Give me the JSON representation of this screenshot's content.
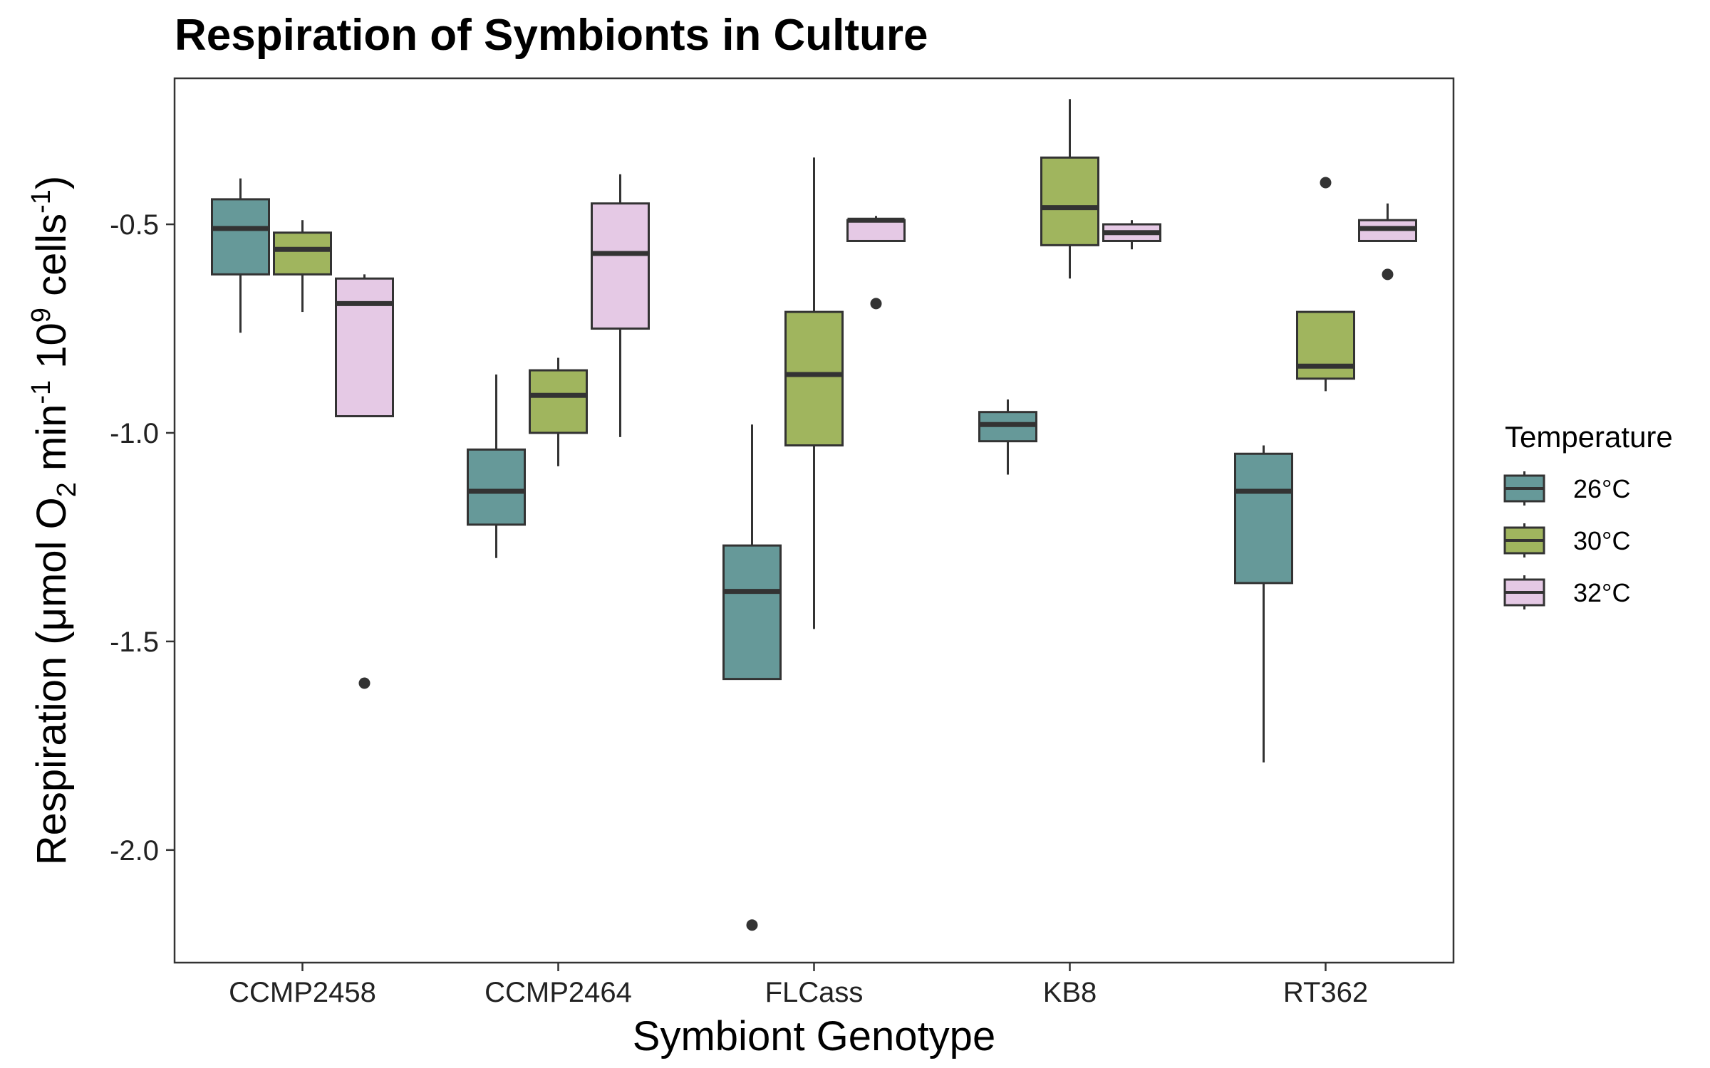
{
  "chart_data": {
    "type": "boxplot",
    "title": "Respiration of Symbionts in Culture",
    "xlabel": "Symbiont Genotype",
    "ylabel": {
      "parts": [
        "Respiration (μmol O",
        "2",
        " min",
        "-1",
        " 10",
        "9",
        " cells",
        "-1",
        ")"
      ]
    },
    "ylim": [
      -2.27,
      -0.15
    ],
    "yticks": [
      -0.5,
      -1.0,
      -1.5,
      -2.0
    ],
    "ytick_labels": [
      "-0.5",
      "-1.0",
      "-1.5",
      "-2.0"
    ],
    "grid": false,
    "legend": {
      "title": "Temperature",
      "position": "right",
      "entries": [
        "26°C",
        "30°C",
        "32°C"
      ]
    },
    "colors": {
      "26°C": "#669999",
      "30°C": "#a0b55e",
      "32°C": "#e5c9e5"
    },
    "categories": [
      "CCMP2458",
      "CCMP2464",
      "FLCass",
      "KB8",
      "RT362"
    ],
    "series": [
      {
        "name": "26°C",
        "boxes": [
          {
            "lower": -0.76,
            "q1": -0.62,
            "median": -0.51,
            "q3": -0.44,
            "upper": -0.39,
            "outliers": []
          },
          {
            "lower": -1.3,
            "q1": -1.22,
            "median": -1.14,
            "q3": -1.04,
            "upper": -0.86,
            "outliers": []
          },
          {
            "lower": -1.59,
            "q1": -1.59,
            "median": -1.38,
            "q3": -1.27,
            "upper": -0.98,
            "outliers": [
              -2.18
            ]
          },
          {
            "lower": -1.1,
            "q1": -1.02,
            "median": -0.98,
            "q3": -0.95,
            "upper": -0.92,
            "outliers": []
          },
          {
            "lower": -1.79,
            "q1": -1.36,
            "median": -1.14,
            "q3": -1.05,
            "upper": -1.03,
            "outliers": []
          }
        ]
      },
      {
        "name": "30°C",
        "boxes": [
          {
            "lower": -0.71,
            "q1": -0.62,
            "median": -0.56,
            "q3": -0.52,
            "upper": -0.49,
            "outliers": []
          },
          {
            "lower": -1.08,
            "q1": -1.0,
            "median": -0.91,
            "q3": -0.85,
            "upper": -0.82,
            "outliers": []
          },
          {
            "lower": -1.47,
            "q1": -1.03,
            "median": -0.86,
            "q3": -0.71,
            "upper": -0.34,
            "outliers": []
          },
          {
            "lower": -0.63,
            "q1": -0.55,
            "median": -0.46,
            "q3": -0.34,
            "upper": -0.2,
            "outliers": []
          },
          {
            "lower": -0.9,
            "q1": -0.87,
            "median": -0.84,
            "q3": -0.71,
            "upper": -0.71,
            "outliers": [
              -0.4
            ]
          }
        ]
      },
      {
        "name": "32°C",
        "boxes": [
          {
            "lower": -0.96,
            "q1": -0.96,
            "median": -0.69,
            "q3": -0.63,
            "upper": -0.62,
            "outliers": [
              -1.6
            ]
          },
          {
            "lower": -1.01,
            "q1": -0.75,
            "median": -0.57,
            "q3": -0.45,
            "upper": -0.38,
            "outliers": []
          },
          {
            "lower": -0.54,
            "q1": -0.54,
            "median": -0.49,
            "q3": -0.49,
            "upper": -0.48,
            "outliers": [
              -0.69
            ]
          },
          {
            "lower": -0.56,
            "q1": -0.54,
            "median": -0.52,
            "q3": -0.5,
            "upper": -0.49,
            "outliers": []
          },
          {
            "lower": -0.54,
            "q1": -0.54,
            "median": -0.51,
            "q3": -0.49,
            "upper": -0.45,
            "outliers": [
              -0.62
            ]
          }
        ]
      }
    ]
  }
}
